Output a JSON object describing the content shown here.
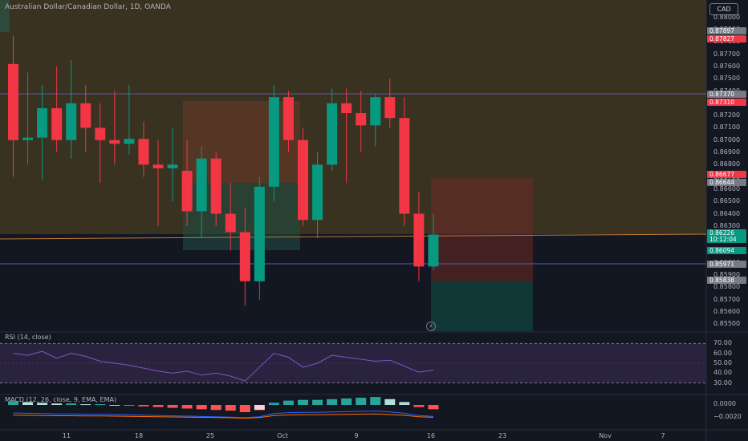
{
  "header": {
    "symbol_title": "Australian Dollar/Canadian Dollar, 1D, OANDA",
    "currency_button": "CAD"
  },
  "price_axis": {
    "ticks": [
      "0.88000",
      "0.87900",
      "0.87800",
      "0.87700",
      "0.87600",
      "0.87500",
      "0.87400",
      "0.87300",
      "0.87200",
      "0.87100",
      "0.87000",
      "0.86900",
      "0.86800",
      "0.86700",
      "0.86600",
      "0.86500",
      "0.86400",
      "0.86300",
      "0.86200",
      "0.86100",
      "0.86000",
      "0.85900",
      "0.85800",
      "0.85700",
      "0.85600",
      "0.85500"
    ],
    "badges": [
      {
        "text": "0.87897",
        "color": "#787b86"
      },
      {
        "text": "0.87827",
        "color": "#f23645"
      },
      {
        "text": "0.87370",
        "color": "#787b86"
      },
      {
        "text": "0.87310",
        "color": "#f23645"
      },
      {
        "text": "0.86677",
        "color": "#f23645"
      },
      {
        "text": "0.86644",
        "color": "#787b86"
      },
      {
        "text": "0.86226",
        "color": "#089981"
      },
      {
        "text": "10:12:04",
        "color": "#089981"
      },
      {
        "text": "0.86094",
        "color": "#089981"
      },
      {
        "text": "0.85971",
        "color": "#787b86"
      },
      {
        "text": "0.85838",
        "color": "#787b86"
      }
    ]
  },
  "rsi": {
    "label": "RSI (14, close)",
    "ticks": [
      "70.00",
      "60.00",
      "50.00",
      "40.00",
      "30.00"
    ]
  },
  "macd": {
    "label": "MACD (12, 26, close, 9, EMA, EMA)",
    "ticks": [
      "0.0000",
      "−0.0020"
    ]
  },
  "time_axis": {
    "labels": [
      "11",
      "18",
      "25",
      "Oct",
      "9",
      "16",
      "23",
      "Nov",
      "7"
    ]
  },
  "colors": {
    "up": "#089981",
    "down": "#f23645",
    "background": "#131722",
    "zone_orange": "#4a3a22",
    "rsi_line": "#7e57c2"
  },
  "icons": {
    "alert": "lightning-icon"
  },
  "chart_data": {
    "type": "candlestick",
    "title": "Australian Dollar/Canadian Dollar, 1D, OANDA",
    "ylim": [
      0.8545,
      0.8805
    ],
    "candles": [
      {
        "o": 0.8762,
        "h": 0.8785,
        "l": 0.867,
        "c": 0.87
      },
      {
        "o": 0.87,
        "h": 0.8755,
        "l": 0.868,
        "c": 0.8702
      },
      {
        "o": 0.8702,
        "h": 0.8745,
        "l": 0.8668,
        "c": 0.8726
      },
      {
        "o": 0.8726,
        "h": 0.876,
        "l": 0.869,
        "c": 0.87
      },
      {
        "o": 0.87,
        "h": 0.8765,
        "l": 0.8685,
        "c": 0.873
      },
      {
        "o": 0.873,
        "h": 0.8745,
        "l": 0.869,
        "c": 0.871
      },
      {
        "o": 0.871,
        "h": 0.873,
        "l": 0.8665,
        "c": 0.87
      },
      {
        "o": 0.87,
        "h": 0.874,
        "l": 0.868,
        "c": 0.8697
      },
      {
        "o": 0.8697,
        "h": 0.8745,
        "l": 0.8688,
        "c": 0.8701
      },
      {
        "o": 0.8701,
        "h": 0.8715,
        "l": 0.867,
        "c": 0.868
      },
      {
        "o": 0.868,
        "h": 0.87,
        "l": 0.863,
        "c": 0.8677
      },
      {
        "o": 0.8677,
        "h": 0.871,
        "l": 0.865,
        "c": 0.868
      },
      {
        "o": 0.8675,
        "h": 0.87,
        "l": 0.863,
        "c": 0.8642
      },
      {
        "o": 0.8642,
        "h": 0.8695,
        "l": 0.862,
        "c": 0.8685
      },
      {
        "o": 0.8685,
        "h": 0.869,
        "l": 0.863,
        "c": 0.864
      },
      {
        "o": 0.864,
        "h": 0.8665,
        "l": 0.861,
        "c": 0.8625
      },
      {
        "o": 0.8625,
        "h": 0.8645,
        "l": 0.8565,
        "c": 0.8585
      },
      {
        "o": 0.8585,
        "h": 0.867,
        "l": 0.857,
        "c": 0.8662
      },
      {
        "o": 0.8662,
        "h": 0.8745,
        "l": 0.865,
        "c": 0.8735
      },
      {
        "o": 0.8735,
        "h": 0.874,
        "l": 0.869,
        "c": 0.87
      },
      {
        "o": 0.87,
        "h": 0.871,
        "l": 0.863,
        "c": 0.8635
      },
      {
        "o": 0.8635,
        "h": 0.869,
        "l": 0.862,
        "c": 0.868
      },
      {
        "o": 0.868,
        "h": 0.8742,
        "l": 0.8675,
        "c": 0.873
      },
      {
        "o": 0.873,
        "h": 0.8742,
        "l": 0.8665,
        "c": 0.8722
      },
      {
        "o": 0.8722,
        "h": 0.874,
        "l": 0.869,
        "c": 0.8712
      },
      {
        "o": 0.8712,
        "h": 0.8738,
        "l": 0.8695,
        "c": 0.8735
      },
      {
        "o": 0.8735,
        "h": 0.875,
        "l": 0.871,
        "c": 0.8718
      },
      {
        "o": 0.8718,
        "h": 0.8735,
        "l": 0.863,
        "c": 0.864
      },
      {
        "o": 0.864,
        "h": 0.8658,
        "l": 0.8585,
        "c": 0.8597
      },
      {
        "o": 0.8597,
        "h": 0.864,
        "l": 0.8594,
        "c": 0.8623
      }
    ],
    "rsi": [
      60,
      58,
      62,
      55,
      60,
      57,
      52,
      50,
      48,
      45,
      42,
      40,
      42,
      38,
      40,
      37,
      32,
      46,
      60,
      56,
      46,
      50,
      58,
      56,
      54,
      52,
      53,
      47,
      41,
      43
    ],
    "macd_hist": [
      0.0005,
      0.0004,
      0.0003,
      0.0002,
      0.0002,
      0.0001,
      0.0001,
      0.0,
      -0.0001,
      -0.0002,
      -0.0003,
      -0.0004,
      -0.0005,
      -0.0006,
      -0.0007,
      -0.0008,
      -0.001,
      -0.0007,
      0.0003,
      0.0006,
      0.0007,
      0.0007,
      0.0008,
      0.0009,
      0.001,
      0.0011,
      0.0008,
      0.0004,
      -0.0003,
      -0.0006
    ],
    "price_lines": [
      0.87897,
      0.87827,
      0.8737,
      0.8731,
      0.86677,
      0.86644,
      0.86226,
      0.86094,
      0.85971,
      0.85838
    ]
  }
}
